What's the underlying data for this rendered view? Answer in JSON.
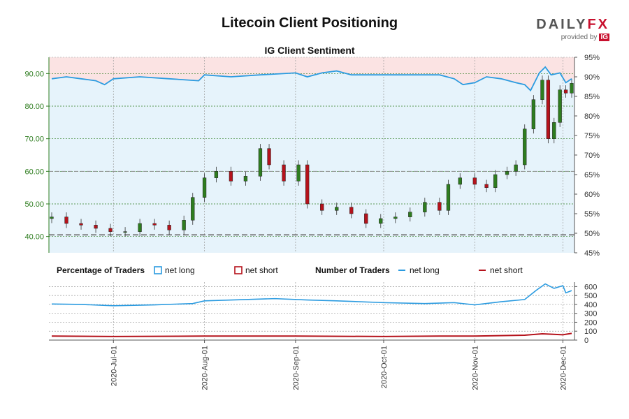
{
  "title": "Litecoin Client Positioning",
  "subtitle": "IG Client Sentiment",
  "brand": {
    "word_left": "DAILY",
    "word_right": "FX",
    "provided_by": "provided by",
    "ig": "IG"
  },
  "legend": {
    "pct_title": "Percentage of Traders",
    "pct_long": "net long",
    "pct_short": "net short",
    "num_title": "Number of Traders",
    "num_long": "net long",
    "num_short": "net short"
  },
  "colors": {
    "long": "#2b9be0",
    "short": "#b5121b",
    "up_candle": "#2e7d1f",
    "down_candle": "#b5121b",
    "long_area": "#e6f3fb",
    "short_area": "#fbe3e3",
    "price_axis": "#2e7d1f"
  },
  "chart_data": [
    {
      "type": "candlestick",
      "price_axis": {
        "ylim": [
          35,
          95
        ],
        "ticks": [
          "40.00",
          "50.00",
          "60.00",
          "70.00",
          "80.00",
          "90.00"
        ]
      },
      "pct_axis": {
        "ylim": [
          45,
          95
        ],
        "ticks": [
          "45%",
          "50%",
          "55%",
          "60%",
          "65%",
          "70%",
          "75%",
          "80%",
          "85%",
          "90%",
          "95%"
        ]
      },
      "x_ticks": [
        "2020-Jul-01",
        "2020-Aug-01",
        "2020-Sep-01",
        "2020-Oct-01",
        "2020-Nov-01",
        "2020-Dec-01"
      ],
      "date_range": [
        "2020-06-10",
        "2020-12-04"
      ],
      "reference_lines": {
        "price_60": 60.0,
        "price_40_5": 40.5
      },
      "price_closes": [
        {
          "date": "2020-06-10",
          "close": 46.0
        },
        {
          "date": "2020-06-15",
          "close": 44.0
        },
        {
          "date": "2020-06-20",
          "close": 43.5
        },
        {
          "date": "2020-06-25",
          "close": 42.5
        },
        {
          "date": "2020-06-30",
          "close": 41.5
        },
        {
          "date": "2020-07-05",
          "close": 41.5
        },
        {
          "date": "2020-07-10",
          "close": 44.0
        },
        {
          "date": "2020-07-15",
          "close": 43.5
        },
        {
          "date": "2020-07-20",
          "close": 42.0
        },
        {
          "date": "2020-07-25",
          "close": 45.0
        },
        {
          "date": "2020-07-28",
          "close": 52.0
        },
        {
          "date": "2020-08-01",
          "close": 58.0
        },
        {
          "date": "2020-08-05",
          "close": 60.0
        },
        {
          "date": "2020-08-10",
          "close": 57.0
        },
        {
          "date": "2020-08-15",
          "close": 58.5
        },
        {
          "date": "2020-08-20",
          "close": 67.0
        },
        {
          "date": "2020-08-23",
          "close": 62.0
        },
        {
          "date": "2020-08-28",
          "close": 57.0
        },
        {
          "date": "2020-09-02",
          "close": 62.0
        },
        {
          "date": "2020-09-05",
          "close": 50.0
        },
        {
          "date": "2020-09-10",
          "close": 48.0
        },
        {
          "date": "2020-09-15",
          "close": 49.0
        },
        {
          "date": "2020-09-20",
          "close": 47.0
        },
        {
          "date": "2020-09-25",
          "close": 44.0
        },
        {
          "date": "2020-09-30",
          "close": 45.5
        },
        {
          "date": "2020-10-05",
          "close": 46.0
        },
        {
          "date": "2020-10-10",
          "close": 47.5
        },
        {
          "date": "2020-10-15",
          "close": 50.5
        },
        {
          "date": "2020-10-20",
          "close": 48.0
        },
        {
          "date": "2020-10-23",
          "close": 56.0
        },
        {
          "date": "2020-10-27",
          "close": 58.0
        },
        {
          "date": "2020-11-01",
          "close": 56.0
        },
        {
          "date": "2020-11-05",
          "close": 55.0
        },
        {
          "date": "2020-11-08",
          "close": 59.0
        },
        {
          "date": "2020-11-12",
          "close": 60.0
        },
        {
          "date": "2020-11-15",
          "close": 62.0
        },
        {
          "date": "2020-11-18",
          "close": 73.0
        },
        {
          "date": "2020-11-21",
          "close": 82.0
        },
        {
          "date": "2020-11-24",
          "close": 88.0
        },
        {
          "date": "2020-11-26",
          "close": 70.0
        },
        {
          "date": "2020-11-28",
          "close": 75.0
        },
        {
          "date": "2020-11-30",
          "close": 85.0
        },
        {
          "date": "2020-12-02",
          "close": 84.0
        },
        {
          "date": "2020-12-04",
          "close": 87.0
        }
      ],
      "pct_long_series": [
        {
          "date": "2020-06-10",
          "pct": 89.5
        },
        {
          "date": "2020-06-15",
          "pct": 90.0
        },
        {
          "date": "2020-06-20",
          "pct": 89.5
        },
        {
          "date": "2020-06-25",
          "pct": 89.0
        },
        {
          "date": "2020-06-28",
          "pct": 88.0
        },
        {
          "date": "2020-07-01",
          "pct": 89.5
        },
        {
          "date": "2020-07-10",
          "pct": 90.0
        },
        {
          "date": "2020-07-20",
          "pct": 89.5
        },
        {
          "date": "2020-07-30",
          "pct": 89.0
        },
        {
          "date": "2020-08-01",
          "pct": 90.5
        },
        {
          "date": "2020-08-10",
          "pct": 90.0
        },
        {
          "date": "2020-08-20",
          "pct": 90.5
        },
        {
          "date": "2020-09-01",
          "pct": 91.0
        },
        {
          "date": "2020-09-05",
          "pct": 90.0
        },
        {
          "date": "2020-09-10",
          "pct": 91.0
        },
        {
          "date": "2020-09-15",
          "pct": 91.5
        },
        {
          "date": "2020-09-20",
          "pct": 90.5
        },
        {
          "date": "2020-10-01",
          "pct": 90.5
        },
        {
          "date": "2020-10-10",
          "pct": 90.5
        },
        {
          "date": "2020-10-20",
          "pct": 90.5
        },
        {
          "date": "2020-10-25",
          "pct": 89.5
        },
        {
          "date": "2020-10-28",
          "pct": 88.0
        },
        {
          "date": "2020-11-01",
          "pct": 88.5
        },
        {
          "date": "2020-11-05",
          "pct": 90.0
        },
        {
          "date": "2020-11-10",
          "pct": 89.5
        },
        {
          "date": "2020-11-15",
          "pct": 88.5
        },
        {
          "date": "2020-11-18",
          "pct": 88.0
        },
        {
          "date": "2020-11-20",
          "pct": 86.5
        },
        {
          "date": "2020-11-23",
          "pct": 91.0
        },
        {
          "date": "2020-11-25",
          "pct": 92.5
        },
        {
          "date": "2020-11-27",
          "pct": 90.5
        },
        {
          "date": "2020-11-30",
          "pct": 91.0
        },
        {
          "date": "2020-12-02",
          "pct": 88.5
        },
        {
          "date": "2020-12-04",
          "pct": 89.5
        }
      ]
    },
    {
      "type": "line",
      "ylim": [
        0,
        650
      ],
      "ticks": [
        "0",
        "100",
        "200",
        "300",
        "400",
        "500",
        "600"
      ],
      "series": [
        {
          "name": "net long",
          "points": [
            {
              "date": "2020-06-10",
              "value": 405
            },
            {
              "date": "2020-06-20",
              "value": 400
            },
            {
              "date": "2020-07-01",
              "value": 385
            },
            {
              "date": "2020-07-15",
              "value": 395
            },
            {
              "date": "2020-07-28",
              "value": 410
            },
            {
              "date": "2020-08-01",
              "value": 440
            },
            {
              "date": "2020-08-15",
              "value": 455
            },
            {
              "date": "2020-08-25",
              "value": 465
            },
            {
              "date": "2020-09-05",
              "value": 450
            },
            {
              "date": "2020-09-15",
              "value": 440
            },
            {
              "date": "2020-10-01",
              "value": 420
            },
            {
              "date": "2020-10-15",
              "value": 410
            },
            {
              "date": "2020-10-25",
              "value": 420
            },
            {
              "date": "2020-11-01",
              "value": 395
            },
            {
              "date": "2020-11-10",
              "value": 430
            },
            {
              "date": "2020-11-18",
              "value": 455
            },
            {
              "date": "2020-11-22",
              "value": 560
            },
            {
              "date": "2020-11-25",
              "value": 630
            },
            {
              "date": "2020-11-28",
              "value": 580
            },
            {
              "date": "2020-12-01",
              "value": 610
            },
            {
              "date": "2020-12-02",
              "value": 530
            },
            {
              "date": "2020-12-04",
              "value": 555
            }
          ]
        },
        {
          "name": "net short",
          "points": [
            {
              "date": "2020-06-10",
              "value": 45
            },
            {
              "date": "2020-07-01",
              "value": 40
            },
            {
              "date": "2020-08-01",
              "value": 45
            },
            {
              "date": "2020-09-01",
              "value": 45
            },
            {
              "date": "2020-10-01",
              "value": 40
            },
            {
              "date": "2020-10-20",
              "value": 45
            },
            {
              "date": "2020-11-01",
              "value": 45
            },
            {
              "date": "2020-11-18",
              "value": 55
            },
            {
              "date": "2020-11-24",
              "value": 70
            },
            {
              "date": "2020-12-01",
              "value": 60
            },
            {
              "date": "2020-12-04",
              "value": 75
            }
          ]
        }
      ]
    }
  ]
}
